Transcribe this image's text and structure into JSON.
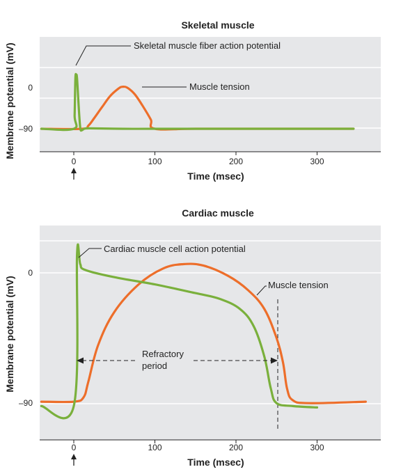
{
  "chart_data": [
    {
      "type": "line",
      "title": "Skeletal muscle",
      "xlabel": "Time (msec)",
      "ylabel": "Membrane potential (mV)",
      "xlim": [
        -40,
        355
      ],
      "xticks": [
        "0",
        "100",
        "200",
        "300"
      ],
      "yticks": [
        "0",
        "–90"
      ],
      "xtick_values": [
        0,
        100,
        200,
        300
      ],
      "ytick_values": [
        0,
        -90
      ],
      "grid": true,
      "stimulus_arrow_at_x": 0,
      "series": [
        {
          "name": "Skeletal muscle fiber action potential",
          "color": "#7ab03c",
          "points": [
            [
              -40,
              -90
            ],
            [
              0,
              -90
            ],
            [
              1,
              -60
            ],
            [
              2,
              20
            ],
            [
              3,
              28
            ],
            [
              4,
              20
            ],
            [
              6,
              -40
            ],
            [
              8,
              -88
            ],
            [
              10,
              -93
            ],
            [
              13,
              -90
            ],
            [
              20,
              -89
            ],
            [
              60,
              -90
            ],
            [
              100,
              -90
            ],
            [
              200,
              -90
            ],
            [
              300,
              -90
            ],
            [
              345,
              -90
            ]
          ]
        },
        {
          "name": "Muscle tension",
          "color": "#ed6e2a",
          "points": [
            [
              -40,
              -90
            ],
            [
              10,
              -90
            ],
            [
              18,
              -83
            ],
            [
              25,
              -67
            ],
            [
              35,
              -42
            ],
            [
              45,
              -18
            ],
            [
              55,
              -2
            ],
            [
              60,
              2
            ],
            [
              66,
              0
            ],
            [
              75,
              -14
            ],
            [
              85,
              -40
            ],
            [
              95,
              -70
            ],
            [
              100,
              -90
            ],
            [
              150,
              -90
            ],
            [
              250,
              -90
            ],
            [
              345,
              -90
            ]
          ]
        }
      ]
    },
    {
      "type": "line",
      "title": "Cardiac muscle",
      "xlabel": "Time (msec)",
      "ylabel": "Membrane potential (mV)",
      "xlim": [
        -40,
        370
      ],
      "xticks": [
        "0",
        "100",
        "200",
        "300"
      ],
      "yticks": [
        "0",
        "–90"
      ],
      "xtick_values": [
        0,
        100,
        200,
        300
      ],
      "ytick_values": [
        0,
        -90
      ],
      "grid": true,
      "stimulus_arrow_at_x": 0,
      "series": [
        {
          "name": "Cardiac muscle cell action potential",
          "color": "#7ab03c",
          "points": [
            [
              -40,
              -92
            ],
            [
              0,
              -92
            ],
            [
              4,
              13
            ],
            [
              8,
              6
            ],
            [
              14,
              2
            ],
            [
              50,
              -3
            ],
            [
              100,
              -8
            ],
            [
              150,
              -14
            ],
            [
              180,
              -18
            ],
            [
              205,
              -25
            ],
            [
              222,
              -37
            ],
            [
              235,
              -58
            ],
            [
              243,
              -80
            ],
            [
              250,
              -90
            ],
            [
              270,
              -92
            ],
            [
              300,
              -93
            ]
          ]
        },
        {
          "name": "Muscle tension",
          "color": "#ed6e2a",
          "points": [
            [
              -40,
              -89
            ],
            [
              0,
              -89
            ],
            [
              12,
              -86
            ],
            [
              18,
              -75
            ],
            [
              30,
              -50
            ],
            [
              50,
              -27
            ],
            [
              80,
              -8
            ],
            [
              110,
              3
            ],
            [
              135,
              6
            ],
            [
              160,
              5
            ],
            [
              190,
              -2
            ],
            [
              215,
              -12
            ],
            [
              235,
              -25
            ],
            [
              250,
              -45
            ],
            [
              258,
              -62
            ],
            [
              263,
              -80
            ],
            [
              270,
              -88
            ],
            [
              290,
              -90
            ],
            [
              360,
              -89
            ]
          ]
        }
      ],
      "annotations": {
        "refractory_label_line1": "Refractory",
        "refractory_label_line2": "period",
        "refractory_range": [
          5,
          252
        ]
      }
    }
  ]
}
